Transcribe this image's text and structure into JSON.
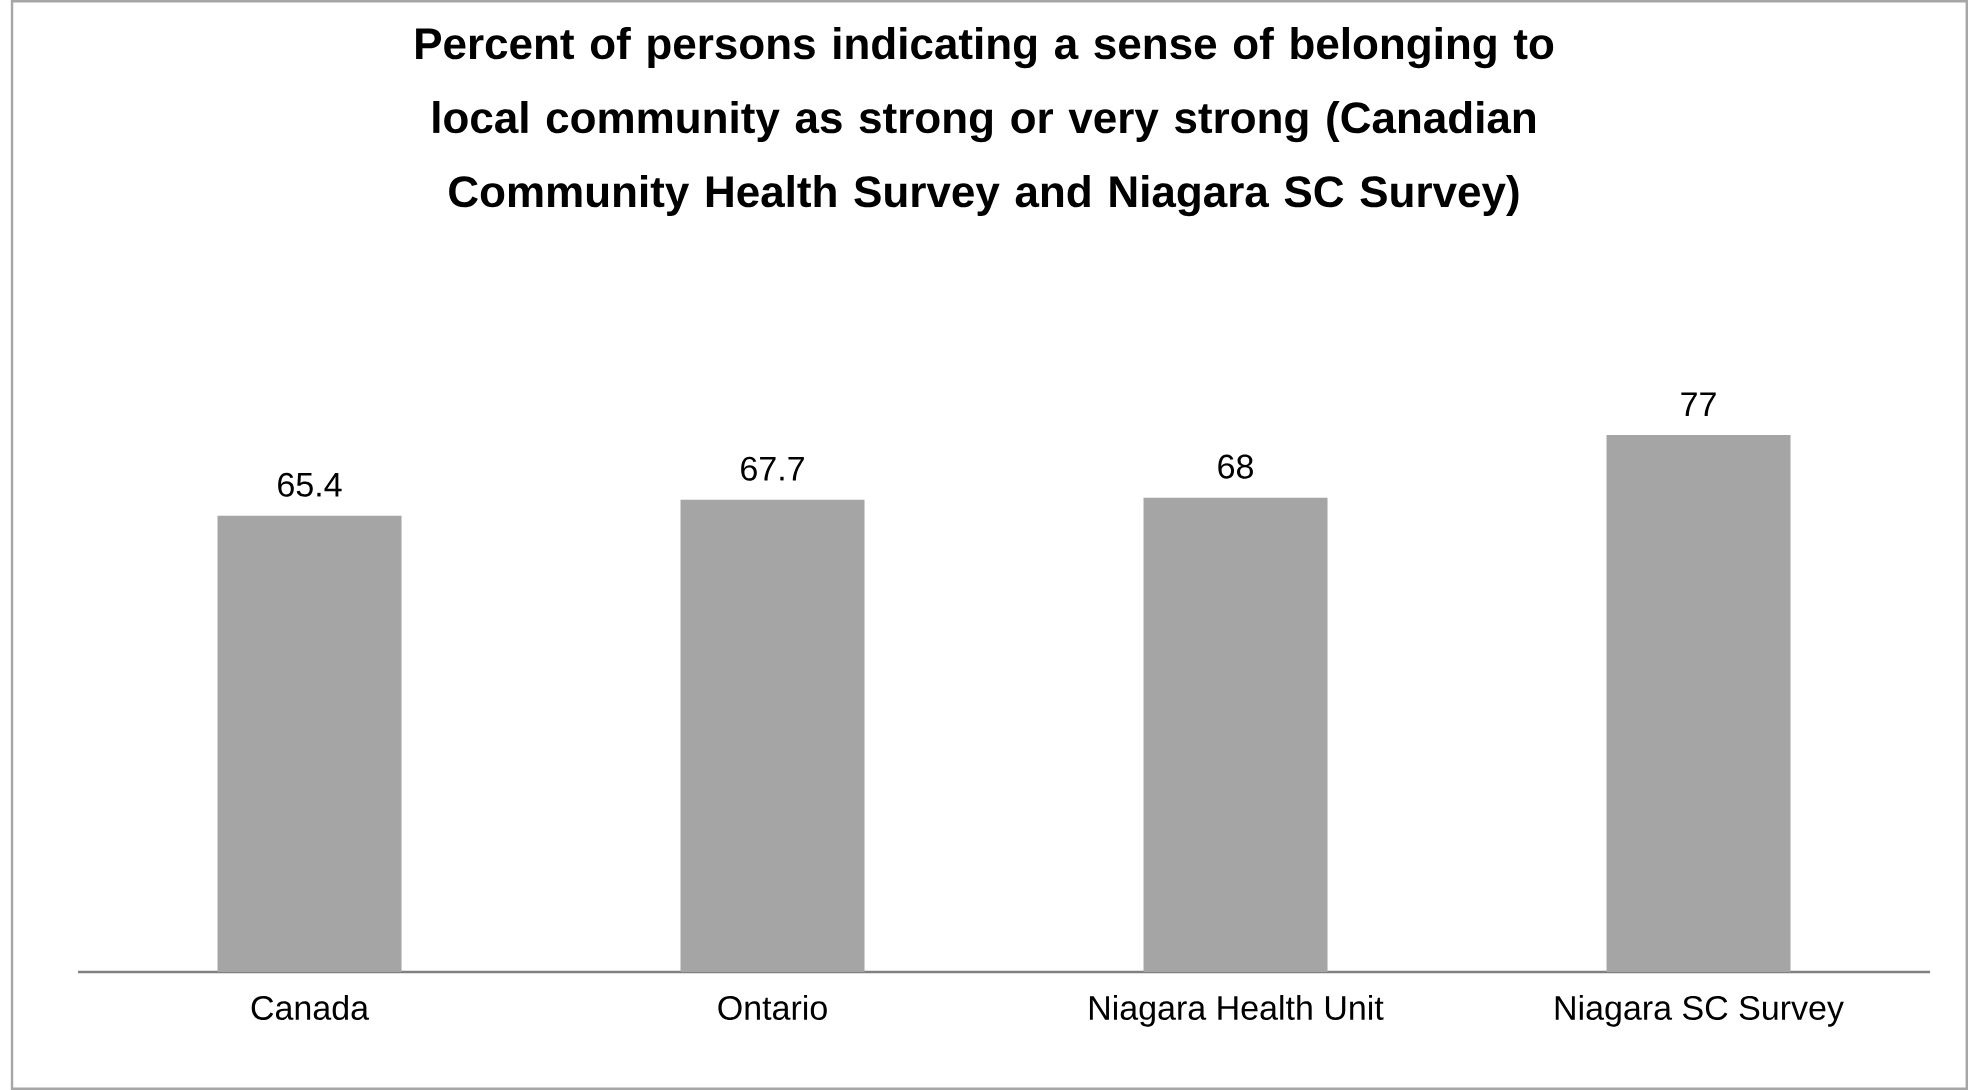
{
  "chart_data": {
    "type": "bar",
    "title": "Percent of persons indicating a sense of belonging to local community as strong or very strong (Canadian Community Health Survey and Niagara SC Survey)",
    "categories": [
      "Canada",
      "Ontario",
      "Niagara Health Unit",
      "Niagara SC Survey"
    ],
    "values": [
      65.4,
      67.7,
      68,
      77
    ],
    "color": "#a5a5a5",
    "tick_labels": "x",
    "data_labels": true
  }
}
